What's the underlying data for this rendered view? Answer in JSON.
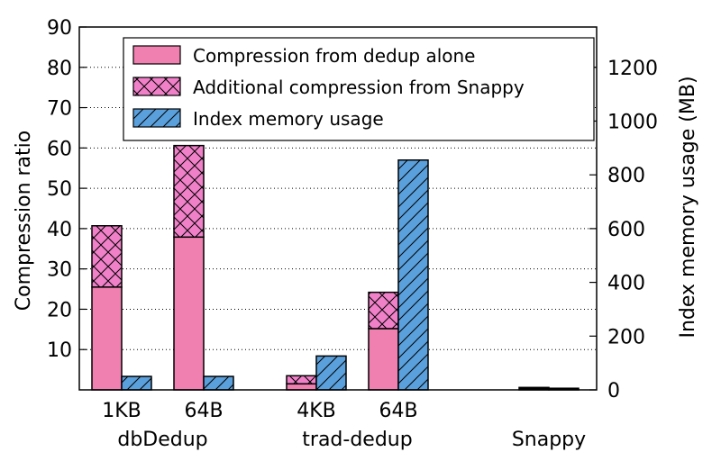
{
  "chart_data": {
    "type": "bar",
    "ylabel": "Compression ratio",
    "ylabel_right": "Index memory usage (MB)",
    "ylim": [
      0,
      90
    ],
    "ylim_right": [
      0,
      1350
    ],
    "yticks": [
      10,
      20,
      30,
      40,
      50,
      60,
      70,
      80,
      90
    ],
    "yticks_right": [
      0,
      200,
      400,
      600,
      800,
      1000,
      1200
    ],
    "grid": "horizontal dotted",
    "legend_position": "top",
    "legend": [
      {
        "key": "dedup",
        "label": "Compression from dedup alone"
      },
      {
        "key": "snappy",
        "label": "Additional compression from Snappy"
      },
      {
        "key": "index",
        "label": "Index memory usage"
      }
    ],
    "groups": [
      {
        "label": "dbDedup",
        "categories": [
          {
            "label": "1KB",
            "dedup": 25.5,
            "snappy": 15.2,
            "index_mb": 50
          },
          {
            "label": "64B",
            "dedup": 37.9,
            "snappy": 22.7,
            "index_mb": 50
          }
        ]
      },
      {
        "label": "trad-dedup",
        "categories": [
          {
            "label": "4KB",
            "dedup": 1.5,
            "snappy": 2.0,
            "index_mb": 126
          },
          {
            "label": "64B",
            "dedup": 15.2,
            "snappy": 9.0,
            "index_mb": 855
          }
        ]
      },
      {
        "label": "Snappy",
        "categories": [
          {
            "label": "",
            "dedup": 0,
            "snappy": 0.6,
            "index_mb": 6
          }
        ]
      }
    ],
    "colors": {
      "dedup": "#f080b0",
      "snappy": "#f080c8",
      "index": "#5aa0dc"
    }
  }
}
